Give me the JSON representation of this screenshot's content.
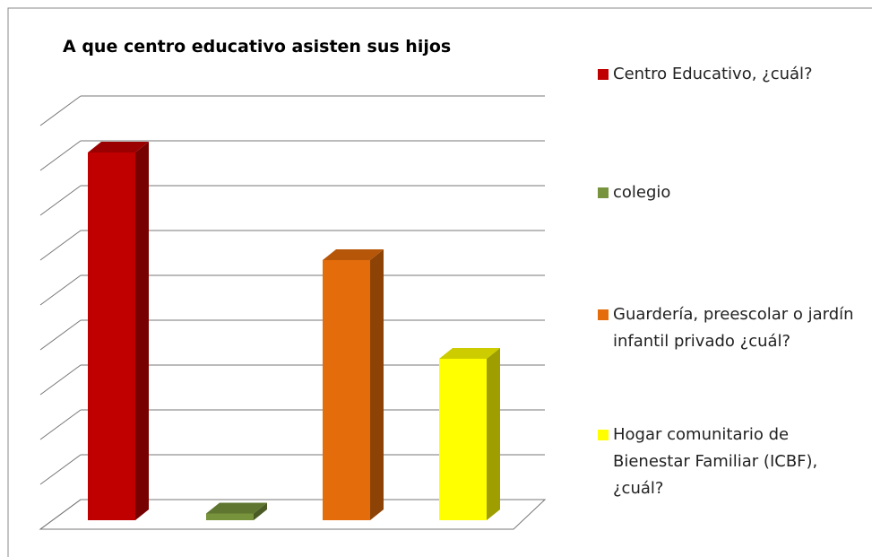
{
  "chart_data": {
    "type": "bar3d",
    "title": "A que centro educativo asisten sus hijos",
    "categories": [
      "Centro Educativo, ¿cuál?",
      "colegio",
      "Guardería, preescolar o jardín infantil privado ¿cuál?",
      "Hogar comunitario de Bienestar Familiar (ICBF), ¿cuál?"
    ],
    "values": [
      8.2,
      0.15,
      5.8,
      3.6
    ],
    "colors": [
      "#c00000",
      "#77933c",
      "#e46c0a",
      "#ffff00"
    ],
    "ylim": [
      0,
      9
    ],
    "yticks": [
      0,
      1,
      2,
      3,
      4,
      5,
      6,
      7,
      8,
      9
    ],
    "grid": true,
    "legend": "right"
  }
}
